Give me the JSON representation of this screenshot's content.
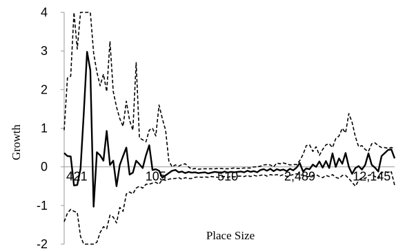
{
  "chart_data": {
    "type": "line",
    "title": "",
    "xlabel": "Place Size",
    "ylabel": "Growth",
    "ylim": [
      -2,
      4
    ],
    "yticks": [
      -2,
      -1,
      0,
      1,
      2,
      3,
      4
    ],
    "x_axis_scale": "log",
    "x_tick_labels": [
      "4",
      "21",
      "105",
      "510",
      "2,489",
      "12,145"
    ],
    "grid": false,
    "legend": "none",
    "colors": {
      "line": "#000000",
      "axis": "#999999"
    },
    "series": [
      {
        "style": "solid",
        "values": [
          0.36,
          0.28,
          0.27,
          -0.48,
          -0.47,
          -0.05,
          1.4,
          2.98,
          2.5,
          -1.03,
          0.38,
          0.3,
          0.16,
          0.93,
          0.05,
          0.16,
          -0.5,
          0.05,
          0.28,
          0.5,
          -0.2,
          -0.15,
          0.16,
          0.07,
          -0.03,
          0.3,
          0.56,
          -0.08,
          -0.06,
          -0.1,
          -0.28,
          -0.22,
          -0.16,
          -0.1,
          -0.08,
          -0.14,
          -0.12,
          -0.16,
          -0.13,
          -0.15,
          -0.14,
          -0.16,
          -0.15,
          -0.14,
          -0.17,
          -0.15,
          -0.13,
          -0.14,
          -0.16,
          -0.12,
          -0.15,
          -0.13,
          -0.14,
          -0.13,
          -0.12,
          -0.14,
          -0.1,
          -0.13,
          -0.11,
          -0.14,
          -0.08,
          -0.06,
          -0.1,
          -0.05,
          -0.11,
          -0.06,
          -0.09,
          -0.07,
          -0.11,
          -0.05,
          -0.09,
          -0.02,
          0.1,
          -0.12,
          -0.04,
          -0.06,
          0.06,
          0.0,
          0.14,
          -0.02,
          0.15,
          -0.03,
          0.35,
          0.0,
          0.22,
          0.08,
          0.36,
          0.0,
          -0.18,
          -0.03,
          0.02,
          -0.07,
          0.05,
          0.35,
          0.05,
          -0.02,
          -0.12,
          0.28,
          0.36,
          0.44,
          0.45,
          0.22
        ]
      },
      {
        "style": "dashed",
        "values": [
          0.95,
          2.3,
          2.35,
          4.0,
          3.05,
          4.0,
          4.0,
          4.0,
          4.0,
          2.95,
          2.45,
          2.1,
          2.4,
          1.95,
          3.25,
          1.95,
          1.55,
          1.25,
          1.05,
          1.7,
          1.2,
          0.95,
          2.7,
          0.75,
          0.7,
          0.65,
          0.95,
          1.0,
          0.8,
          1.6,
          1.25,
          0.95,
          0.15,
          0.0,
          0.05,
          0.02,
          0.06,
          0.08,
          0.0,
          -0.06,
          -0.04,
          -0.06,
          -0.05,
          -0.05,
          -0.05,
          -0.05,
          -0.05,
          -0.04,
          -0.04,
          -0.05,
          -0.05,
          -0.04,
          -0.03,
          -0.04,
          -0.04,
          -0.03,
          -0.03,
          -0.03,
          0.0,
          0.0,
          0.02,
          0.05,
          0.06,
          0.05,
          0.0,
          0.1,
          0.08,
          0.1,
          0.08,
          0.05,
          0.06,
          0.06,
          0.16,
          0.32,
          0.55,
          0.57,
          0.4,
          0.52,
          0.3,
          0.45,
          0.57,
          0.6,
          0.5,
          0.73,
          0.8,
          1.0,
          0.88,
          1.38,
          1.15,
          0.78,
          0.52,
          0.55,
          0.45,
          0.4,
          0.6,
          0.62,
          0.55,
          0.5,
          0.5,
          0.48,
          0.5,
          0.48
        ]
      },
      {
        "style": "dashed",
        "values": [
          -1.42,
          -1.2,
          -1.1,
          -1.15,
          -1.18,
          -1.8,
          -2.0,
          -2.0,
          -2.0,
          -2.0,
          -1.95,
          -1.7,
          -1.55,
          -1.6,
          -1.25,
          -1.3,
          -1.45,
          -1.05,
          -1.15,
          -0.7,
          -0.65,
          -0.7,
          -0.55,
          -0.5,
          -0.55,
          -0.45,
          -0.45,
          -0.42,
          -0.4,
          -0.45,
          -0.32,
          -0.35,
          -0.32,
          -0.3,
          -0.3,
          -0.28,
          -0.32,
          -0.28,
          -0.3,
          -0.3,
          -0.27,
          -0.26,
          -0.27,
          -0.26,
          -0.27,
          -0.25,
          -0.26,
          -0.27,
          -0.26,
          -0.25,
          -0.27,
          -0.25,
          -0.26,
          -0.24,
          -0.24,
          -0.25,
          -0.22,
          -0.25,
          -0.22,
          -0.24,
          -0.22,
          -0.2,
          -0.24,
          -0.2,
          -0.22,
          -0.2,
          -0.23,
          -0.2,
          -0.25,
          -0.22,
          -0.2,
          -0.18,
          -0.2,
          -0.22,
          -0.25,
          -0.25,
          -0.22,
          -0.2,
          -0.25,
          -0.28,
          -0.22,
          -0.25,
          -0.2,
          -0.27,
          -0.3,
          -0.22,
          -0.22,
          -0.3,
          -0.4,
          -0.5,
          -0.35,
          -0.28,
          -0.3,
          -0.22,
          -0.2,
          -0.25,
          -0.3,
          -0.15,
          -0.12,
          -0.15,
          -0.13,
          -0.48
        ]
      }
    ]
  }
}
